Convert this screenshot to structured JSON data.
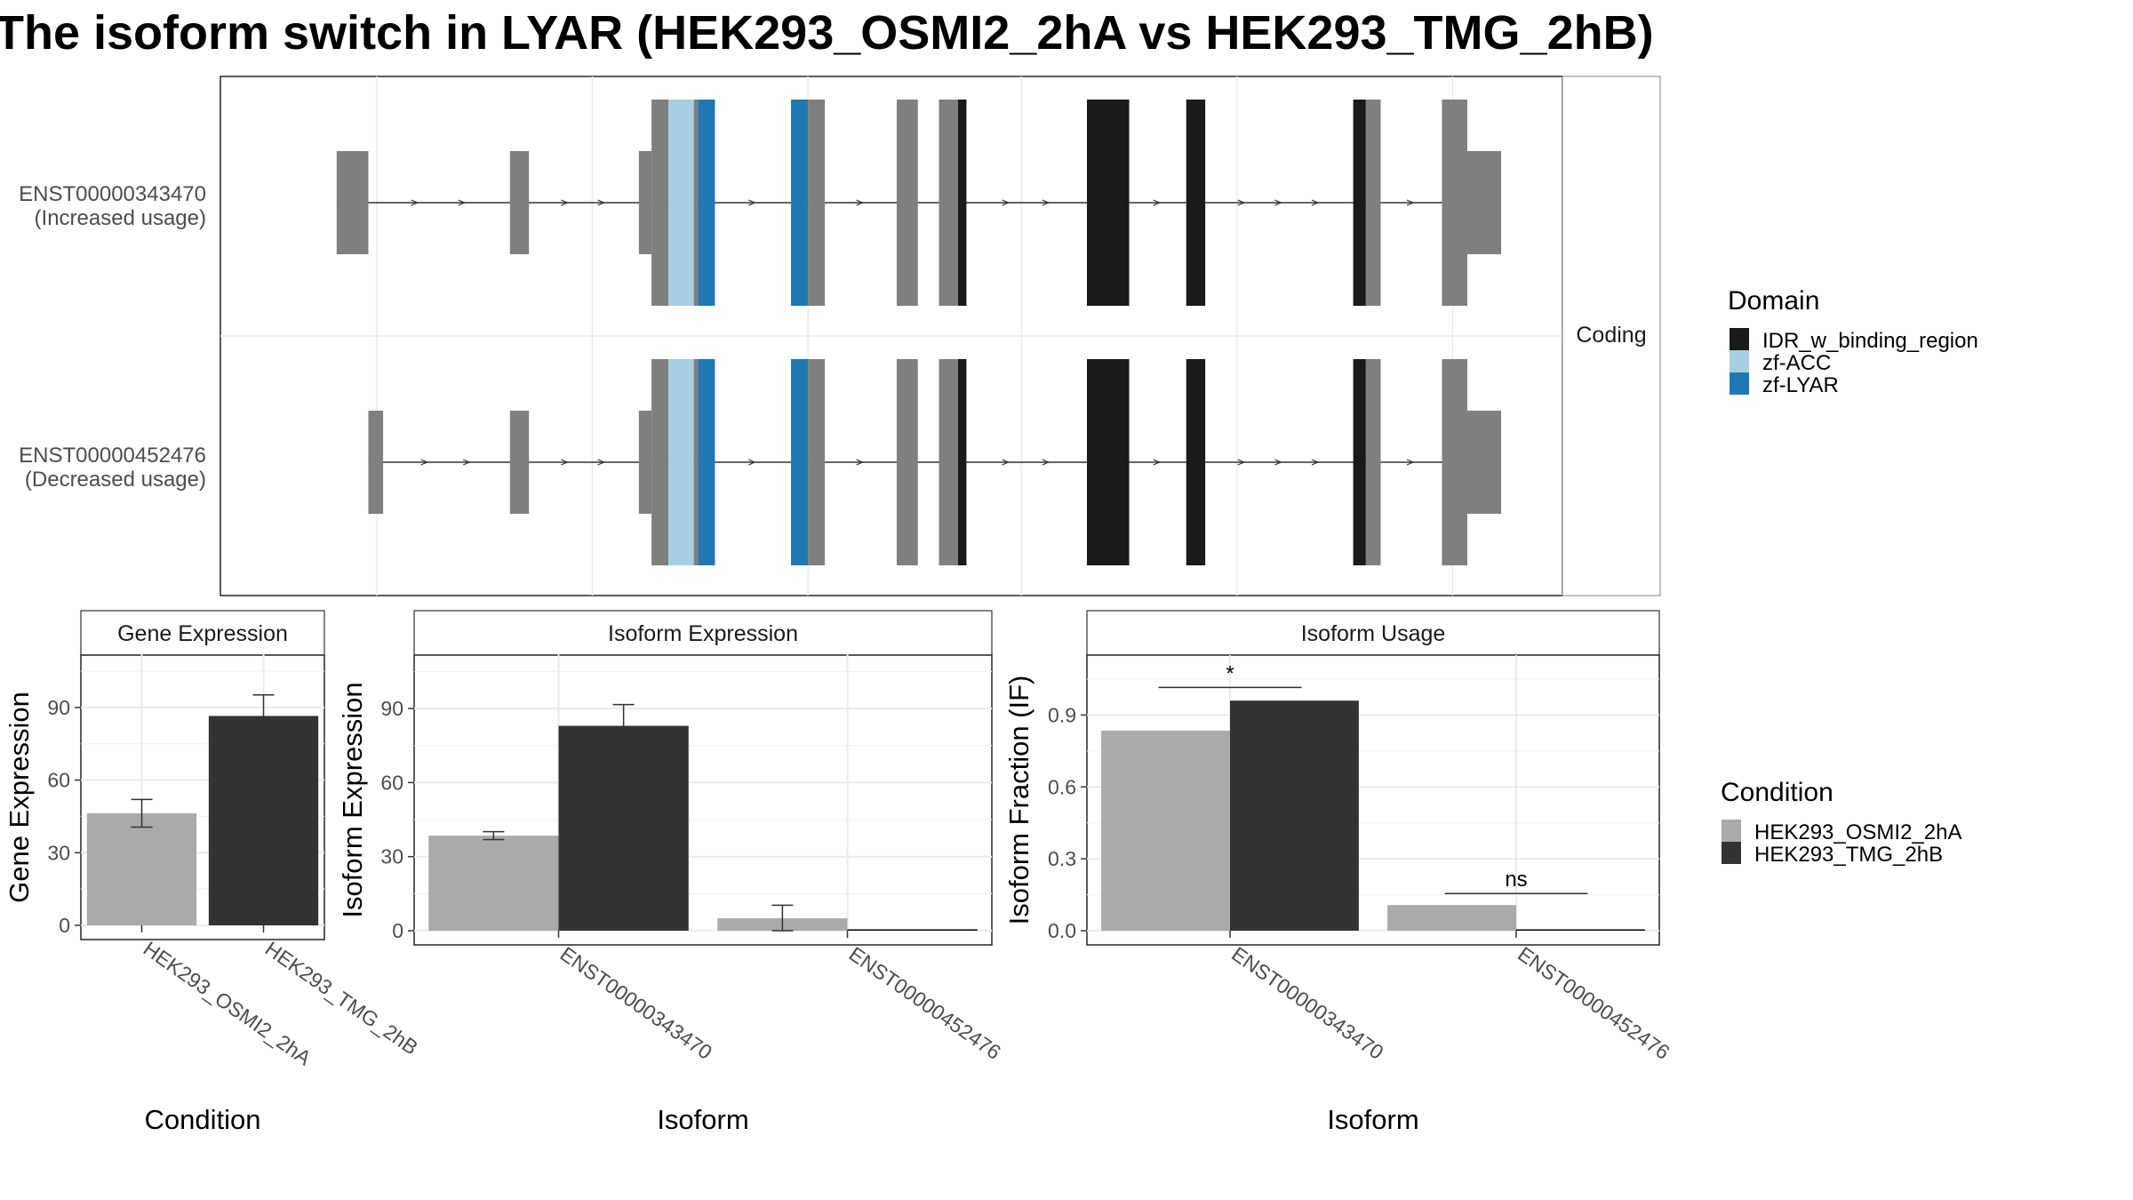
{
  "title": "The isoform switch in LYAR (HEK293_OSMI2_2hA vs HEK293_TMG_2hB)",
  "colors": {
    "exon": "#7f7f7f",
    "IDR_w_binding_region": "#1a1a1a",
    "zf-ACC": "#a6cee3",
    "zf-LYAR": "#1f78b4",
    "condition_A": "#aaaaaa",
    "condition_B": "#333333",
    "grid": "#ebebeb",
    "strip_border": "#999999"
  },
  "domain_legend": {
    "title": "Domain",
    "items": [
      "IDR_w_binding_region",
      "zf-ACC",
      "zf-LYAR"
    ]
  },
  "condition_legend": {
    "title": "Condition",
    "items": [
      "HEK293_OSMI2_2hA",
      "HEK293_TMG_2hB"
    ]
  },
  "chart_data": [
    {
      "type": "gene-structure",
      "facet_strip": "Coding",
      "isoforms": [
        {
          "id": "ENST00000343470",
          "label_line1": "ENST00000343470",
          "label_line2": "(Increased usage)",
          "segments": [
            {
              "start": 5.5,
              "end": 7.0,
              "kind": "utr"
            },
            {
              "start": 13.7,
              "end": 14.6,
              "kind": "utr"
            },
            {
              "start": 19.8,
              "end": 20.4,
              "kind": "utr"
            },
            {
              "start": 20.4,
              "end": 21.2,
              "kind": "cds"
            },
            {
              "start": 21.2,
              "end": 22.4,
              "kind": "zf-ACC"
            },
            {
              "start": 22.4,
              "end": 22.6,
              "kind": "cds"
            },
            {
              "start": 22.6,
              "end": 23.4,
              "kind": "zf-LYAR"
            },
            {
              "start": 27.0,
              "end": 27.8,
              "kind": "zf-LYAR"
            },
            {
              "start": 27.8,
              "end": 28.6,
              "kind": "cds"
            },
            {
              "start": 32.0,
              "end": 33.0,
              "kind": "cds"
            },
            {
              "start": 34.0,
              "end": 34.9,
              "kind": "cds"
            },
            {
              "start": 34.9,
              "end": 35.3,
              "kind": "IDR_w_binding_region"
            },
            {
              "start": 41.0,
              "end": 43.0,
              "kind": "IDR_w_binding_region"
            },
            {
              "start": 45.7,
              "end": 46.6,
              "kind": "IDR_w_binding_region"
            },
            {
              "start": 53.6,
              "end": 54.2,
              "kind": "IDR_w_binding_region"
            },
            {
              "start": 54.2,
              "end": 54.9,
              "kind": "cds"
            },
            {
              "start": 57.8,
              "end": 59.0,
              "kind": "cds"
            },
            {
              "start": 59.0,
              "end": 60.6,
              "kind": "utr"
            }
          ]
        },
        {
          "id": "ENST00000452476",
          "label_line1": "ENST00000452476",
          "label_line2": "(Decreased usage)",
          "segments": [
            {
              "start": 7.0,
              "end": 7.7,
              "kind": "utr"
            },
            {
              "start": 13.7,
              "end": 14.6,
              "kind": "utr"
            },
            {
              "start": 19.8,
              "end": 20.4,
              "kind": "utr"
            },
            {
              "start": 20.4,
              "end": 21.2,
              "kind": "cds"
            },
            {
              "start": 21.2,
              "end": 22.4,
              "kind": "zf-ACC"
            },
            {
              "start": 22.4,
              "end": 22.6,
              "kind": "cds"
            },
            {
              "start": 22.6,
              "end": 23.4,
              "kind": "zf-LYAR"
            },
            {
              "start": 27.0,
              "end": 27.8,
              "kind": "zf-LYAR"
            },
            {
              "start": 27.8,
              "end": 28.6,
              "kind": "cds"
            },
            {
              "start": 32.0,
              "end": 33.0,
              "kind": "cds"
            },
            {
              "start": 34.0,
              "end": 34.9,
              "kind": "cds"
            },
            {
              "start": 34.9,
              "end": 35.3,
              "kind": "IDR_w_binding_region"
            },
            {
              "start": 41.0,
              "end": 43.0,
              "kind": "IDR_w_binding_region"
            },
            {
              "start": 45.7,
              "end": 46.6,
              "kind": "IDR_w_binding_region"
            },
            {
              "start": 53.6,
              "end": 54.2,
              "kind": "IDR_w_binding_region"
            },
            {
              "start": 54.2,
              "end": 54.9,
              "kind": "cds"
            },
            {
              "start": 57.8,
              "end": 59.0,
              "kind": "cds"
            },
            {
              "start": 59.0,
              "end": 60.6,
              "kind": "utr"
            }
          ]
        }
      ]
    },
    {
      "type": "bar",
      "title": "Gene Expression",
      "xlabel": "Condition",
      "ylabel": "Gene Expression",
      "categories": [
        "HEK293_OSMI2_2hA",
        "HEK293_TMG_2hB"
      ],
      "values": [
        46.3,
        86.5
      ],
      "errors": [
        5.7,
        8.7
      ],
      "yticks": [
        0,
        30,
        60,
        90
      ],
      "ylim": [
        0,
        112
      ]
    },
    {
      "type": "bar",
      "title": "Isoform Expression",
      "xlabel": "Isoform",
      "ylabel": "Isoform Expression",
      "categories": [
        "ENST00000343470",
        "ENST00000452476"
      ],
      "series": [
        {
          "name": "HEK293_OSMI2_2hA",
          "values": [
            38.5,
            5.0
          ],
          "errors": [
            1.6,
            5.3
          ]
        },
        {
          "name": "HEK293_TMG_2hB",
          "values": [
            83.0,
            0.0
          ],
          "errors": [
            8.6,
            0.0
          ]
        }
      ],
      "yticks": [
        0,
        30,
        60,
        90
      ],
      "ylim": [
        0,
        112
      ]
    },
    {
      "type": "bar",
      "title": "Isoform Usage",
      "xlabel": "Isoform",
      "ylabel": "Isoform Fraction (IF)",
      "categories": [
        "ENST00000343470",
        "ENST00000452476"
      ],
      "series": [
        {
          "name": "HEK293_OSMI2_2hA",
          "values": [
            0.835,
            0.107
          ]
        },
        {
          "name": "HEK293_TMG_2hB",
          "values": [
            0.96,
            0.0
          ]
        }
      ],
      "significance": [
        {
          "label": "*",
          "y": 1.015
        },
        {
          "label": "ns",
          "y": 0.155
        }
      ],
      "yticks": [
        0.0,
        0.3,
        0.6,
        0.9
      ],
      "ylim": [
        0,
        1.15
      ]
    }
  ]
}
